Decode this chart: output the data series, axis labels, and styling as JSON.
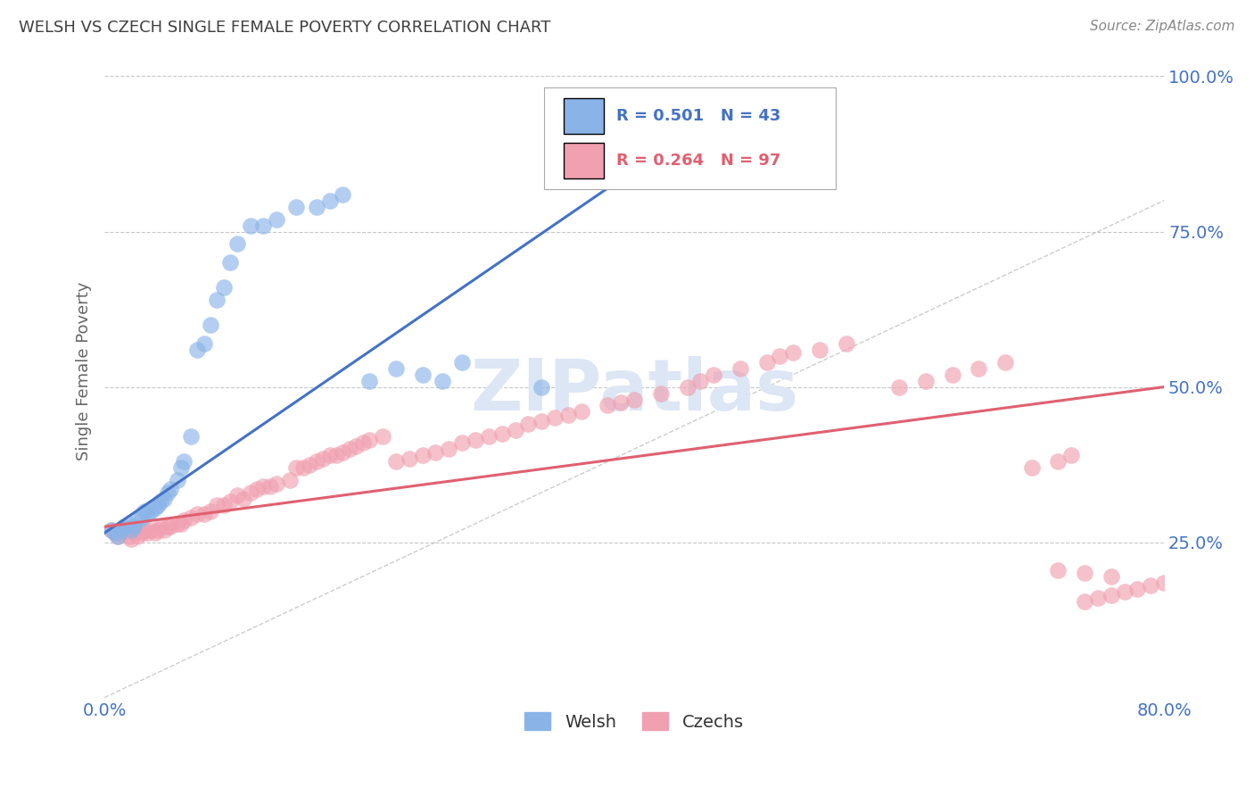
{
  "title": "WELSH VS CZECH SINGLE FEMALE POVERTY CORRELATION CHART",
  "source": "Source: ZipAtlas.com",
  "ylabel": "Single Female Poverty",
  "ytick_labels": [
    "100.0%",
    "75.0%",
    "50.0%",
    "25.0%"
  ],
  "ytick_values": [
    1.0,
    0.75,
    0.5,
    0.25
  ],
  "legend_welsh": "Welsh",
  "legend_czechs": "Czechs",
  "welsh_R": "0.501",
  "welsh_N": "43",
  "czech_R": "0.264",
  "czech_N": "97",
  "welsh_color": "#8ab4e8",
  "czech_color": "#f0a0b0",
  "welsh_line_color": "#4472c4",
  "czech_line_color": "#e06070",
  "diag_line_color": "#c0c0c0",
  "title_color": "#404040",
  "axis_label_color": "#4472c4",
  "source_color": "#888888",
  "background_color": "#ffffff",
  "grid_color": "#c8c8c8",
  "xlim": [
    0.0,
    0.8
  ],
  "ylim": [
    0.0,
    1.05
  ],
  "welsh_x": [
    0.005,
    0.008,
    0.01,
    0.012,
    0.015,
    0.018,
    0.02,
    0.022,
    0.025,
    0.028,
    0.03,
    0.032,
    0.035,
    0.038,
    0.04,
    0.042,
    0.045,
    0.048,
    0.05,
    0.055,
    0.058,
    0.06,
    0.065,
    0.07,
    0.075,
    0.08,
    0.085,
    0.09,
    0.095,
    0.1,
    0.11,
    0.12,
    0.13,
    0.145,
    0.16,
    0.17,
    0.18,
    0.2,
    0.22,
    0.24,
    0.255,
    0.27,
    0.33
  ],
  "welsh_y": [
    0.27,
    0.265,
    0.26,
    0.27,
    0.275,
    0.28,
    0.27,
    0.275,
    0.285,
    0.29,
    0.3,
    0.295,
    0.3,
    0.305,
    0.31,
    0.315,
    0.32,
    0.33,
    0.335,
    0.35,
    0.37,
    0.38,
    0.42,
    0.56,
    0.57,
    0.6,
    0.64,
    0.66,
    0.7,
    0.73,
    0.76,
    0.76,
    0.77,
    0.79,
    0.79,
    0.8,
    0.81,
    0.51,
    0.53,
    0.52,
    0.51,
    0.54,
    0.5
  ],
  "czech_x": [
    0.005,
    0.008,
    0.01,
    0.012,
    0.015,
    0.018,
    0.02,
    0.022,
    0.025,
    0.028,
    0.03,
    0.032,
    0.035,
    0.038,
    0.04,
    0.042,
    0.045,
    0.048,
    0.05,
    0.055,
    0.058,
    0.06,
    0.065,
    0.07,
    0.075,
    0.08,
    0.085,
    0.09,
    0.095,
    0.1,
    0.105,
    0.11,
    0.115,
    0.12,
    0.125,
    0.13,
    0.14,
    0.145,
    0.15,
    0.155,
    0.16,
    0.165,
    0.17,
    0.175,
    0.18,
    0.185,
    0.19,
    0.195,
    0.2,
    0.21,
    0.22,
    0.23,
    0.24,
    0.25,
    0.26,
    0.27,
    0.28,
    0.29,
    0.3,
    0.31,
    0.32,
    0.33,
    0.34,
    0.35,
    0.36,
    0.38,
    0.39,
    0.4,
    0.42,
    0.44,
    0.45,
    0.46,
    0.48,
    0.5,
    0.51,
    0.52,
    0.54,
    0.56,
    0.6,
    0.62,
    0.64,
    0.66,
    0.68,
    0.7,
    0.72,
    0.73,
    0.74,
    0.75,
    0.76,
    0.77,
    0.78,
    0.79,
    0.8,
    0.81,
    0.76,
    0.74,
    0.72
  ],
  "czech_y": [
    0.27,
    0.265,
    0.26,
    0.265,
    0.27,
    0.26,
    0.255,
    0.265,
    0.26,
    0.265,
    0.27,
    0.265,
    0.27,
    0.265,
    0.27,
    0.275,
    0.27,
    0.275,
    0.275,
    0.28,
    0.28,
    0.285,
    0.29,
    0.295,
    0.295,
    0.3,
    0.31,
    0.31,
    0.315,
    0.325,
    0.32,
    0.33,
    0.335,
    0.34,
    0.34,
    0.345,
    0.35,
    0.37,
    0.37,
    0.375,
    0.38,
    0.385,
    0.39,
    0.39,
    0.395,
    0.4,
    0.405,
    0.41,
    0.415,
    0.42,
    0.38,
    0.385,
    0.39,
    0.395,
    0.4,
    0.41,
    0.415,
    0.42,
    0.425,
    0.43,
    0.44,
    0.445,
    0.45,
    0.455,
    0.46,
    0.47,
    0.475,
    0.48,
    0.49,
    0.5,
    0.51,
    0.52,
    0.53,
    0.54,
    0.55,
    0.555,
    0.56,
    0.57,
    0.5,
    0.51,
    0.52,
    0.53,
    0.54,
    0.37,
    0.38,
    0.39,
    0.155,
    0.16,
    0.165,
    0.17,
    0.175,
    0.18,
    0.185,
    0.19,
    0.195,
    0.2,
    0.205
  ],
  "welsh_line_x": [
    0.0,
    0.38
  ],
  "welsh_line_y": [
    0.265,
    0.82
  ],
  "czech_line_x": [
    0.0,
    0.8
  ],
  "czech_line_y": [
    0.275,
    0.5
  ]
}
